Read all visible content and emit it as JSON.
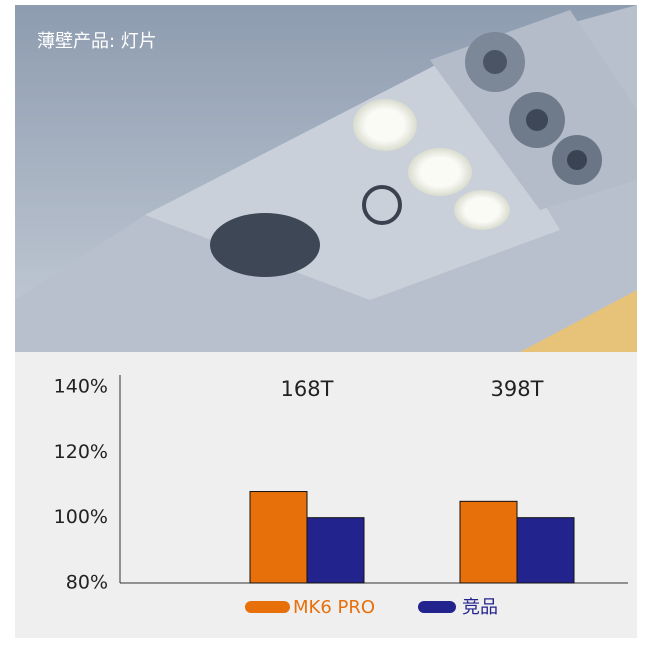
{
  "header": {
    "title": "薄壁产品: 灯片"
  },
  "chart_data": {
    "type": "bar",
    "categories": [
      "168T",
      "398T"
    ],
    "series": [
      {
        "name": "MK6 PRO",
        "color": "#e8700a",
        "values": [
          108,
          105
        ]
      },
      {
        "name": "竞品",
        "color": "#23238e",
        "values": [
          100,
          100
        ]
      }
    ],
    "ylim": [
      80,
      140
    ],
    "yticks": [
      {
        "value": 80,
        "label": "80%"
      },
      {
        "value": 100,
        "label": "100%"
      },
      {
        "value": 120,
        "label": "120%"
      },
      {
        "value": 140,
        "label": "140%"
      }
    ],
    "grid": false,
    "legend": "bottom"
  }
}
